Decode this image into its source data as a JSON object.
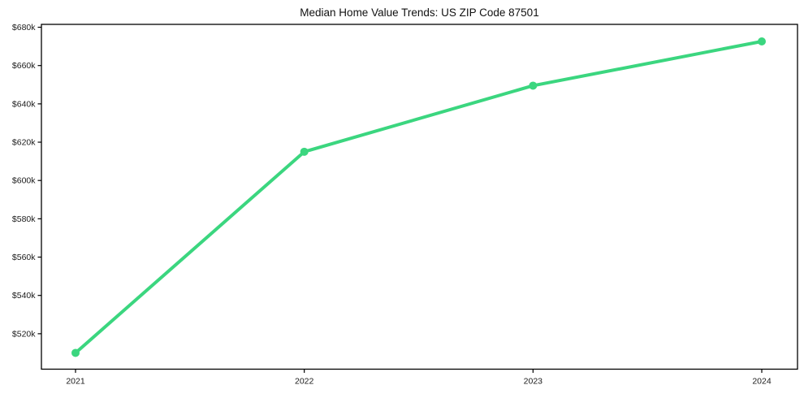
{
  "page": {
    "background_color": "#ffffff"
  },
  "chart_data": {
    "type": "line",
    "title": "Median Home Value Trends: US ZIP Code 87501",
    "x": [
      "2021",
      "2022",
      "2023",
      "2024"
    ],
    "values": [
      510000,
      615000,
      649500,
      672600
    ],
    "xlabel": "",
    "ylabel": "",
    "ylim": [
      501500,
      681500
    ],
    "y_ticks": [
      520000,
      540000,
      560000,
      580000,
      600000,
      620000,
      640000,
      660000,
      680000
    ],
    "y_tick_labels": [
      "$520k",
      "$540k",
      "$560k",
      "$580k",
      "$600k",
      "$620k",
      "$640k",
      "$660k",
      "$680k"
    ],
    "grid": false,
    "legend": "none",
    "marker": "circle",
    "marker_radius": 5,
    "line_width": 4,
    "line_color": "#3bd67f",
    "axis_color": "#000000",
    "text_color": "#1a1a1a"
  }
}
